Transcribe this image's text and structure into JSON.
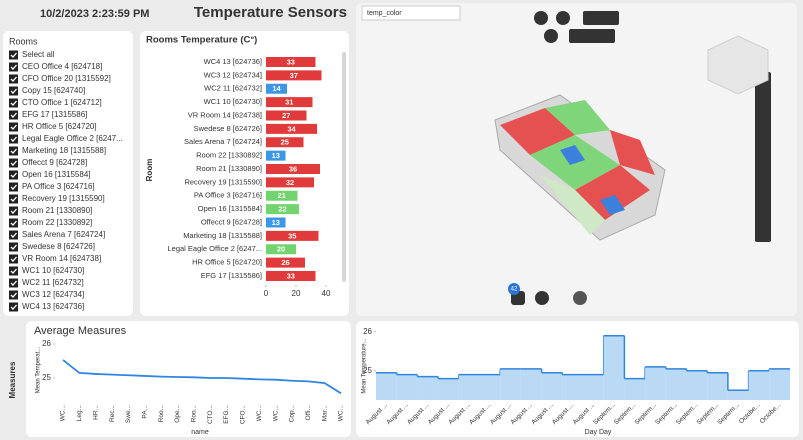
{
  "header": {
    "timestamp": "10/2/2023 2:23:59 PM",
    "title": "Temperature Sensors"
  },
  "slicer": {
    "title": "Rooms",
    "items": [
      "Select all",
      "CEO Office 4 [624718]",
      "CFO Office 20 [1315592]",
      "Copy 15 [624740]",
      "CTO Office 1 [624712]",
      "EFG 17 [1315586]",
      "HR Office 5 [624720]",
      "Legal Eagle Office 2 [6247...",
      "Marketing 18 [1315588]",
      "Offecct 9 [624728]",
      "Open 16 [1315584]",
      "PA Office 3 [624716]",
      "Recovery 19 [1315590]",
      "Room 21 [1330890]",
      "Room 22 [1330892]",
      "Sales Arena 7 [624724]",
      "Swedese 8 [624726]",
      "VR Room 14 [624738]",
      "WC1 10 [624730]",
      "WC2 11 [624732]",
      "WC3 12 [624734]",
      "WC4 13 [624736]"
    ]
  },
  "viewer": {
    "dropdown": "temp_color",
    "badge": "42"
  },
  "chart_data": [
    {
      "type": "hbar",
      "title": "Rooms Temperature (C°)",
      "y_label": "Room",
      "categories": [
        "WC4 13 [624736]",
        "WC3 12 [624734]",
        "WC2 11 [624732]",
        "WC1 10 [624730]",
        "VR Room 14 [624738]",
        "Swedese 8 [624726]",
        "Sales Arena 7 [624724]",
        "Room 22 [1330892]",
        "Room 21 [1330890]",
        "Recovery 19 [1315590]",
        "PA Office 3 [624716]",
        "Open 16 [1315584]",
        "Offecct 9 [624728]",
        "Marketing 18 [1315588]",
        "Legal Eagle Office 2 [6247...",
        "HR Office 5 [624720]",
        "EFG 17 [1315586]"
      ],
      "values": [
        33,
        37,
        14,
        31,
        27,
        34,
        25,
        13,
        36,
        32,
        21,
        22,
        13,
        35,
        20,
        26,
        33
      ],
      "colors": [
        "#e03a3a",
        "#e03a3a",
        "#3c97e6",
        "#e03a3a",
        "#e03a3a",
        "#e03a3a",
        "#e03a3a",
        "#3c97e6",
        "#e03a3a",
        "#e03a3a",
        "#72d46e",
        "#72d46e",
        "#3c97e6",
        "#e03a3a",
        "#72d46e",
        "#e03a3a",
        "#e03a3a"
      ],
      "xlim": [
        0,
        47
      ],
      "xticks": [
        0,
        20,
        40
      ]
    },
    {
      "type": "line",
      "title": "Average Measures",
      "row_label": "Measures",
      "y_label": "Mean Temperat...",
      "x_label": "name",
      "categories": [
        "WC...",
        "Leg...",
        "HR...",
        "Rec...",
        "Swe...",
        "PA...",
        "Roo...",
        "Ope...",
        "Roo...",
        "CTO...",
        "EFG...",
        "CFO...",
        "WC...",
        "WC...",
        "Cop...",
        "Offi...",
        "Mar...",
        "WC..."
      ],
      "values": [
        25.53,
        25.15,
        25.12,
        25.1,
        25.08,
        25.06,
        25.04,
        25.03,
        25.02,
        25.0,
        25.0,
        24.98,
        24.96,
        24.95,
        24.92,
        24.9,
        24.85,
        24.55
      ],
      "color": "#2f86e0",
      "ylim": [
        24.3,
        26.2
      ],
      "yticks": [
        25,
        26
      ]
    },
    {
      "type": "steparea",
      "y_label": "Mean Temperature...",
      "x_label": "Day Day",
      "categories": [
        "August ...",
        "August ...",
        "August ...",
        "August ...",
        "August ...",
        "August ...",
        "August ...",
        "August ...",
        "August ...",
        "August ...",
        "August ...",
        "Septem...",
        "Septem...",
        "Septem...",
        "Septem...",
        "Septem...",
        "Septem...",
        "Septem...",
        "Octobe...",
        "Octobe..."
      ],
      "values": [
        24.95,
        24.9,
        24.85,
        24.8,
        24.9,
        24.9,
        25.05,
        25.05,
        24.95,
        24.9,
        24.9,
        25.9,
        24.8,
        25.1,
        25.05,
        25.0,
        24.95,
        24.5,
        25.0,
        25.05
      ],
      "color": "#2f86e0",
      "fill": "#b9d9f4",
      "ylim": [
        24.25,
        26.2
      ],
      "yticks": [
        25,
        26
      ]
    }
  ]
}
